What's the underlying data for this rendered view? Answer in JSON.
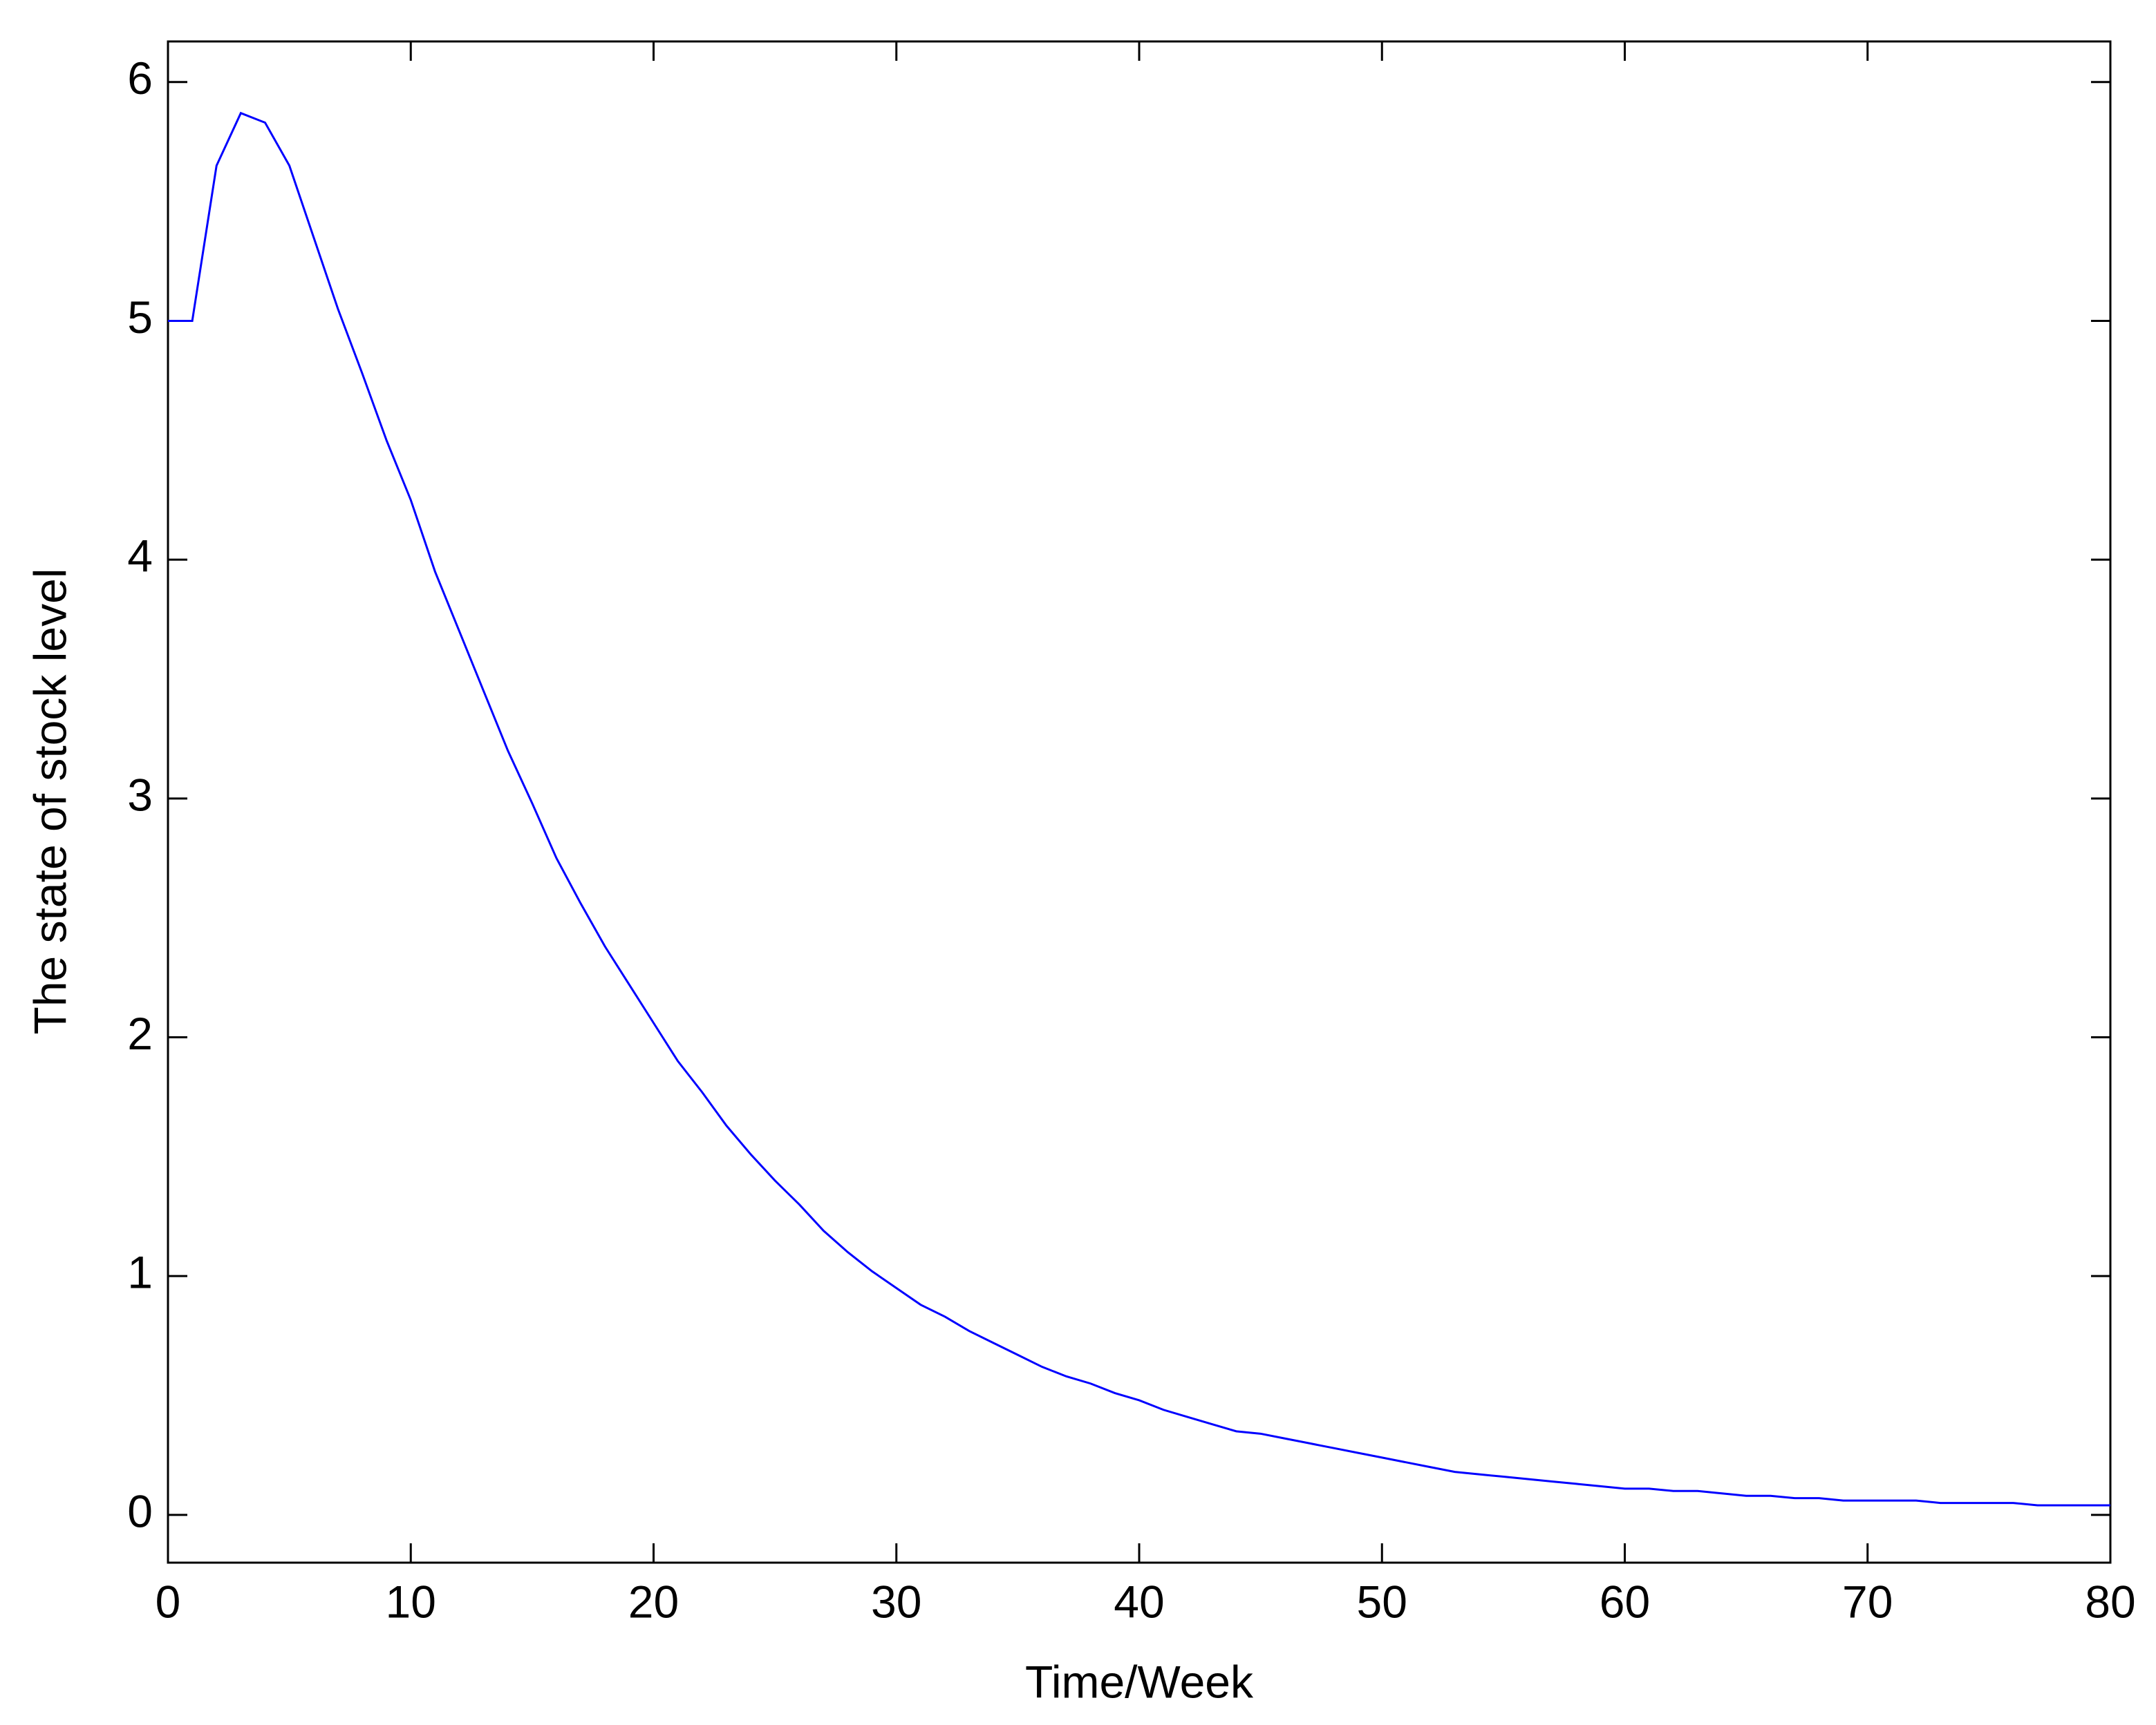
{
  "chart_data": {
    "type": "line",
    "x_label": "Time/Week",
    "y_label": "The state of stock level",
    "x": [
      0,
      1,
      2,
      3,
      4,
      5,
      6,
      7,
      8,
      9,
      10,
      11,
      12,
      13,
      14,
      15,
      16,
      17,
      18,
      19,
      20,
      21,
      22,
      23,
      24,
      25,
      26,
      27,
      28,
      29,
      30,
      31,
      32,
      33,
      34,
      35,
      36,
      37,
      38,
      39,
      40,
      41,
      42,
      43,
      44,
      45,
      46,
      47,
      48,
      49,
      50,
      51,
      52,
      53,
      54,
      55,
      56,
      57,
      58,
      59,
      60,
      61,
      62,
      63,
      64,
      65,
      66,
      67,
      68,
      69,
      70,
      71,
      72,
      73,
      74,
      75,
      76,
      77,
      78,
      79,
      80
    ],
    "series": [
      {
        "color": "#0000ff",
        "values": [
          5.0,
          5.0,
          5.65,
          5.87,
          5.83,
          5.65,
          5.35,
          5.05,
          4.78,
          4.5,
          4.25,
          3.95,
          3.7,
          3.45,
          3.2,
          2.98,
          2.75,
          2.56,
          2.38,
          2.22,
          2.06,
          1.9,
          1.77,
          1.63,
          1.51,
          1.4,
          1.3,
          1.19,
          1.1,
          1.02,
          0.95,
          0.88,
          0.83,
          0.77,
          0.72,
          0.67,
          0.62,
          0.58,
          0.55,
          0.51,
          0.48,
          0.44,
          0.41,
          0.38,
          0.35,
          0.34,
          0.32,
          0.3,
          0.28,
          0.26,
          0.24,
          0.22,
          0.2,
          0.18,
          0.17,
          0.16,
          0.15,
          0.14,
          0.13,
          0.12,
          0.11,
          0.11,
          0.1,
          0.1,
          0.09,
          0.08,
          0.08,
          0.07,
          0.07,
          0.06,
          0.06,
          0.06,
          0.06,
          0.05,
          0.05,
          0.05,
          0.05,
          0.04,
          0.04,
          0.04,
          0.04
        ]
      }
    ],
    "xlim": [
      0,
      80
    ],
    "xticks": [
      0,
      10,
      20,
      30,
      40,
      50,
      60,
      70,
      80
    ],
    "ylim": [
      -0.2,
      6.17
    ],
    "yticks": [
      0,
      1,
      2,
      3,
      4,
      5,
      6
    ]
  }
}
